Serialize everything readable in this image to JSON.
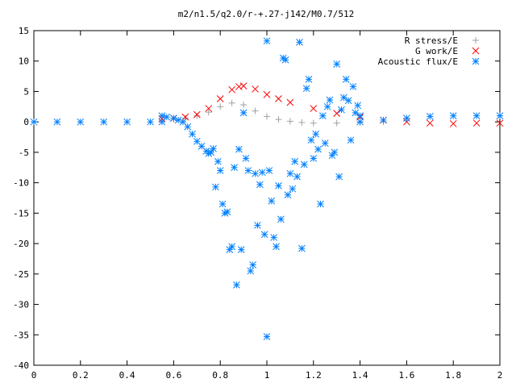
{
  "chart_data": {
    "type": "scatter",
    "title": "m2/n1.5/q2.0/r-+.27-j142/M0.7/512",
    "xlabel": "",
    "ylabel": "",
    "xlim": [
      0,
      2
    ],
    "ylim": [
      -40,
      15
    ],
    "xticks": [
      "0",
      "0.2",
      "0.4",
      "0.6",
      "0.8",
      "1",
      "1.2",
      "1.4",
      "1.6",
      "1.8",
      "2"
    ],
    "yticks": [
      "15",
      "10",
      "5",
      "0",
      "-5",
      "-10",
      "-15",
      "-20",
      "-25",
      "-30",
      "-35",
      "-40"
    ],
    "grid": false,
    "legend_position": "top-right",
    "series": [
      {
        "name": "R stress/E",
        "marker": "plus",
        "color": "#a0a0a0",
        "x": [
          0.55,
          0.6,
          0.65,
          0.7,
          0.75,
          0.8,
          0.85,
          0.9,
          0.95,
          1.0,
          1.05,
          1.1,
          1.15,
          1.2,
          1.3,
          1.4,
          1.5
        ],
        "y": [
          0.3,
          0.4,
          0.6,
          1.0,
          1.6,
          2.5,
          3.1,
          2.8,
          1.8,
          0.9,
          0.4,
          0.1,
          -0.1,
          -0.2,
          -0.2,
          -0.1,
          0.0
        ]
      },
      {
        "name": "G work/E",
        "marker": "cross",
        "color": "#ff0000",
        "x": [
          0.55,
          0.6,
          0.65,
          0.7,
          0.75,
          0.8,
          0.85,
          0.88,
          0.9,
          0.95,
          1.0,
          1.05,
          1.1,
          1.2,
          1.3,
          1.4,
          1.5,
          1.6,
          1.7,
          1.8,
          1.9,
          2.0
        ],
        "y": [
          0.5,
          0.6,
          0.8,
          1.2,
          2.2,
          3.8,
          5.3,
          5.8,
          5.9,
          5.4,
          4.5,
          3.8,
          3.2,
          2.2,
          1.4,
          0.8,
          0.3,
          0.0,
          -0.2,
          -0.3,
          -0.2,
          -0.2
        ]
      },
      {
        "name": "Acoustic flux/E",
        "marker": "star",
        "color": "#0080ff",
        "x": [
          0.55,
          0.57,
          0.6,
          0.62,
          0.64,
          0.66,
          0.68,
          0.7,
          0.72,
          0.74,
          0.75,
          0.76,
          0.77,
          0.78,
          0.79,
          0.8,
          0.81,
          0.82,
          0.83,
          0.84,
          0.85,
          0.86,
          0.87,
          0.88,
          0.89,
          0.9,
          0.91,
          0.92,
          0.93,
          0.94,
          0.95,
          0.96,
          0.97,
          0.98,
          0.99,
          1.0,
          1.0,
          1.01,
          1.02,
          1.03,
          1.04,
          1.05,
          1.06,
          1.07,
          1.08,
          1.09,
          1.1,
          1.11,
          1.12,
          1.13,
          1.14,
          1.15,
          1.16,
          1.17,
          1.18,
          1.19,
          1.2,
          1.21,
          1.22,
          1.23,
          1.24,
          1.25,
          1.26,
          1.27,
          1.28,
          1.29,
          1.3,
          1.31,
          1.32,
          1.33,
          1.34,
          1.35,
          1.36,
          1.37,
          1.38,
          1.39,
          1.4
        ],
        "y": [
          1.0,
          0.8,
          0.6,
          0.3,
          0.0,
          -0.8,
          -2.0,
          -3.2,
          -4.0,
          -4.8,
          -5.2,
          -5.0,
          -4.4,
          -10.7,
          -6.5,
          -8.0,
          -13.5,
          -15.0,
          -14.8,
          -21.0,
          -20.5,
          -7.5,
          -26.8,
          -4.5,
          -21.0,
          1.5,
          -6.0,
          -8.0,
          -24.5,
          -23.5,
          -8.5,
          -17.0,
          -10.3,
          -8.3,
          -18.5,
          13.3,
          -35.3,
          -8.0,
          -13.0,
          -19.0,
          -20.5,
          -10.5,
          -16.0,
          10.5,
          10.2,
          -12.0,
          -8.5,
          -11.0,
          -6.5,
          -9.0,
          13.1,
          -20.8,
          -7.0,
          5.5,
          7.0,
          -3.0,
          -6.0,
          -2.0,
          -4.5,
          -13.5,
          1.0,
          -3.5,
          2.5,
          3.6,
          -5.5,
          -5.0,
          9.5,
          -9.0,
          2.0,
          4.0,
          7.0,
          3.5,
          -3.0,
          5.8,
          1.5,
          2.7,
          1.0
        ]
      },
      {
        "name": "",
        "marker": "star",
        "color": "#0080ff",
        "x": [
          0.0,
          0.1,
          0.2,
          0.3,
          0.4,
          0.5,
          0.55,
          1.4,
          1.5,
          1.6,
          1.7,
          1.8,
          1.9,
          2.0
        ],
        "y": [
          0.0,
          0.0,
          0.0,
          0.0,
          0.0,
          0.0,
          0.0,
          0.0,
          0.3,
          0.6,
          0.9,
          1.0,
          1.0,
          1.0
        ]
      }
    ]
  }
}
